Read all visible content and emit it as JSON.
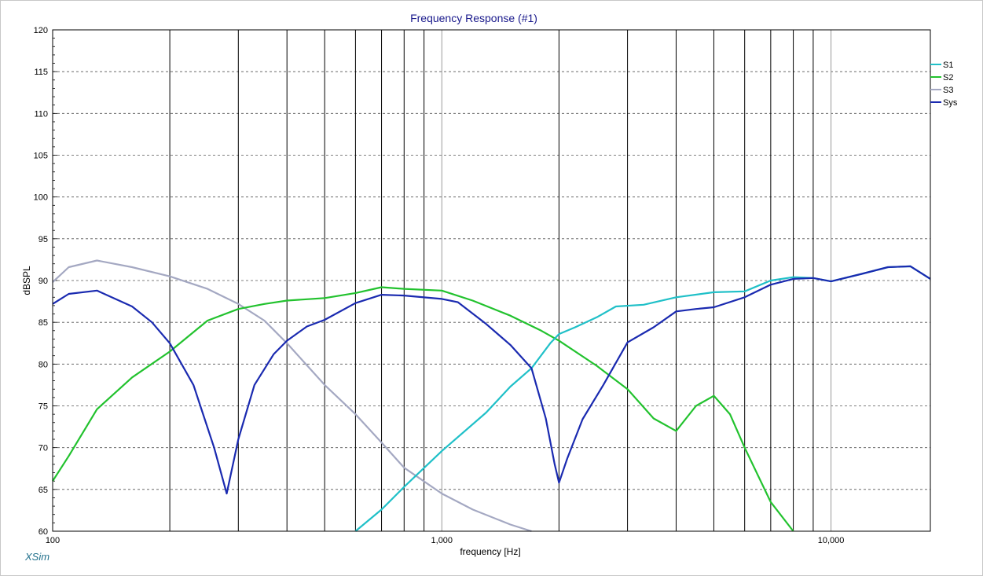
{
  "chart_data": {
    "type": "line",
    "title": "Frequency Response (#1)",
    "xlabel": "frequency [Hz]",
    "ylabel": "dBSPL",
    "xscale": "log",
    "xlim": [
      100,
      18000
    ],
    "ylim": [
      60,
      120
    ],
    "yticks": [
      60,
      65,
      70,
      75,
      80,
      85,
      90,
      95,
      100,
      105,
      110,
      115,
      120
    ],
    "yticks_labels": [
      "60",
      "65",
      "70",
      "75",
      "80",
      "85",
      "90",
      "95",
      "100",
      "105",
      "110",
      "115",
      "120"
    ],
    "xticks": [
      100,
      1000,
      10000
    ],
    "xticks_labels": [
      "100",
      "1,000",
      "10,000"
    ],
    "grid": true,
    "legend_position": "right",
    "series": [
      {
        "name": "S1",
        "color": "#20c0c8",
        "points": [
          [
            600,
            60
          ],
          [
            700,
            62.6
          ],
          [
            800,
            65.3
          ],
          [
            1000,
            69.6
          ],
          [
            1300,
            74.2
          ],
          [
            1500,
            77.3
          ],
          [
            1700,
            79.5
          ],
          [
            1900,
            82.5
          ],
          [
            2000,
            83.6
          ],
          [
            2200,
            84.4
          ],
          [
            2500,
            85.6
          ],
          [
            2800,
            86.9
          ],
          [
            3300,
            87.1
          ],
          [
            4000,
            88.0
          ],
          [
            5000,
            88.6
          ],
          [
            6000,
            88.7
          ],
          [
            7000,
            90.0
          ],
          [
            8000,
            90.4
          ],
          [
            9000,
            90.3
          ],
          [
            10000,
            89.9
          ],
          [
            12000,
            90.8
          ],
          [
            14000,
            91.6
          ],
          [
            16000,
            91.7
          ],
          [
            18000,
            90.2
          ]
        ]
      },
      {
        "name": "S2",
        "color": "#22c22e",
        "points": [
          [
            100,
            66
          ],
          [
            110,
            69.0
          ],
          [
            130,
            74.6
          ],
          [
            160,
            78.4
          ],
          [
            200,
            81.5
          ],
          [
            250,
            85.2
          ],
          [
            300,
            86.6
          ],
          [
            350,
            87.2
          ],
          [
            400,
            87.6
          ],
          [
            500,
            87.9
          ],
          [
            600,
            88.5
          ],
          [
            700,
            89.2
          ],
          [
            800,
            89.0
          ],
          [
            1000,
            88.8
          ],
          [
            1200,
            87.6
          ],
          [
            1500,
            85.8
          ],
          [
            1800,
            84.0
          ],
          [
            2000,
            82.8
          ],
          [
            2500,
            79.8
          ],
          [
            3000,
            77.0
          ],
          [
            3500,
            73.5
          ],
          [
            4000,
            72.0
          ],
          [
            4500,
            75.0
          ],
          [
            5000,
            76.2
          ],
          [
            5500,
            74.0
          ],
          [
            6000,
            70.0
          ],
          [
            7000,
            63.5
          ],
          [
            8000,
            60.0
          ]
        ]
      },
      {
        "name": "S3",
        "color": "#a4a8c2",
        "points": [
          [
            100,
            89.8
          ],
          [
            110,
            91.6
          ],
          [
            130,
            92.4
          ],
          [
            160,
            91.6
          ],
          [
            200,
            90.5
          ],
          [
            250,
            89.0
          ],
          [
            300,
            87.2
          ],
          [
            350,
            85.2
          ],
          [
            400,
            82.5
          ],
          [
            500,
            77.5
          ],
          [
            600,
            74.0
          ],
          [
            700,
            70.6
          ],
          [
            800,
            67.6
          ],
          [
            1000,
            64.5
          ],
          [
            1200,
            62.6
          ],
          [
            1500,
            60.8
          ],
          [
            1700,
            60.0
          ]
        ]
      },
      {
        "name": "Sys",
        "color": "#1a2ab0",
        "points": [
          [
            100,
            87.2
          ],
          [
            110,
            88.4
          ],
          [
            130,
            88.8
          ],
          [
            160,
            86.9
          ],
          [
            180,
            85.0
          ],
          [
            200,
            82.5
          ],
          [
            230,
            77.5
          ],
          [
            260,
            70.0
          ],
          [
            280,
            64.5
          ],
          [
            300,
            71.0
          ],
          [
            330,
            77.5
          ],
          [
            370,
            81.2
          ],
          [
            400,
            82.8
          ],
          [
            450,
            84.5
          ],
          [
            500,
            85.3
          ],
          [
            600,
            87.3
          ],
          [
            700,
            88.3
          ],
          [
            800,
            88.2
          ],
          [
            1000,
            87.8
          ],
          [
            1100,
            87.4
          ],
          [
            1300,
            84.8
          ],
          [
            1500,
            82.3
          ],
          [
            1700,
            79.5
          ],
          [
            1850,
            73.5
          ],
          [
            1950,
            68.0
          ],
          [
            2000,
            65.8
          ],
          [
            2100,
            68.7
          ],
          [
            2300,
            73.4
          ],
          [
            2600,
            77.5
          ],
          [
            3000,
            82.6
          ],
          [
            3500,
            84.4
          ],
          [
            4000,
            86.3
          ],
          [
            4500,
            86.6
          ],
          [
            5000,
            86.8
          ],
          [
            6000,
            88.0
          ],
          [
            7000,
            89.5
          ],
          [
            8000,
            90.2
          ],
          [
            9000,
            90.3
          ],
          [
            10000,
            89.9
          ],
          [
            12000,
            90.8
          ],
          [
            14000,
            91.6
          ],
          [
            16000,
            91.7
          ],
          [
            18000,
            90.2
          ]
        ]
      }
    ]
  },
  "brand": "XSim"
}
